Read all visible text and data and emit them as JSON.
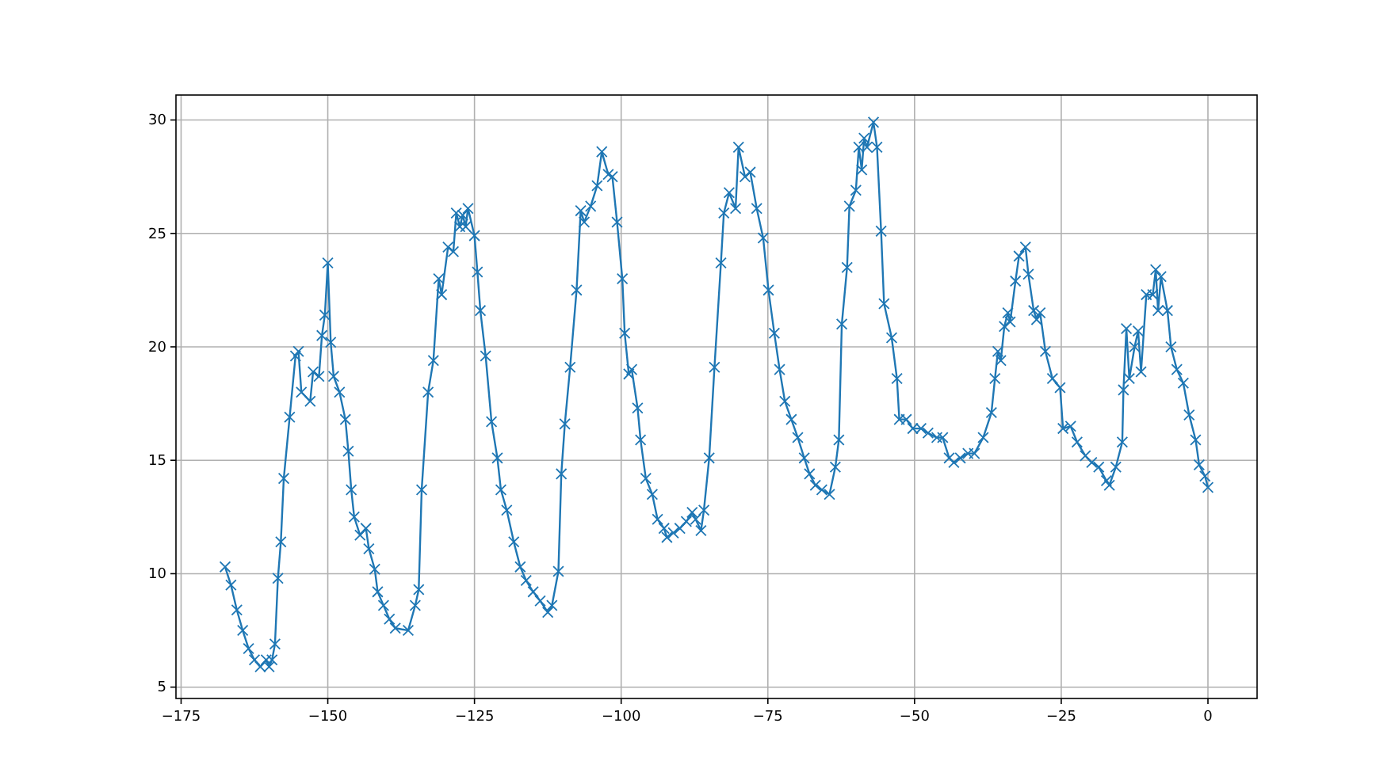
{
  "chart_data": {
    "type": "line",
    "marker": "cross",
    "line_style": "solid",
    "grid": true,
    "xlim": [
      -175.875,
      8.375
    ],
    "ylim": [
      4.5,
      31.1
    ],
    "xticks": [
      {
        "value": -175,
        "label": "−175"
      },
      {
        "value": -150,
        "label": "−150"
      },
      {
        "value": -125,
        "label": "−125"
      },
      {
        "value": -100,
        "label": "−100"
      },
      {
        "value": -75,
        "label": "−75"
      },
      {
        "value": -50,
        "label": "−50"
      },
      {
        "value": -25,
        "label": "−25"
      },
      0
    ],
    "yticks": [
      5,
      10,
      15,
      20,
      25,
      30
    ],
    "series": [
      {
        "color": "#1f77b4",
        "x": [
          -167.5,
          -166.5,
          -165.5,
          -164.5,
          -163.5,
          -162.5,
          -161.5,
          -160.5,
          -160,
          -159.5,
          -159,
          -158.5,
          -158,
          -157.5,
          -156.5,
          -155.5,
          -155,
          -154.5,
          -153,
          -152.5,
          -151.5,
          -151,
          -150.5,
          -150,
          -149.5,
          -149,
          -148,
          -147,
          -146.5,
          -146,
          -145.5,
          -144.5,
          -143.5,
          -143,
          -142,
          -141.5,
          -140.5,
          -139.5,
          -138.5,
          -136.3,
          -135.1,
          -134.5,
          -134.0,
          -132.9,
          -132.0,
          -131.1,
          -130.6,
          -129.5,
          -128.6,
          -128.1,
          -127.5,
          -127.0,
          -126.5,
          -126.1,
          -125.0,
          -124.5,
          -124.0,
          -123.1,
          -122.1,
          -121.1,
          -120.5,
          -119.5,
          -118.3,
          -117.2,
          -116.2,
          -115.0,
          -113.8,
          -112.5,
          -111.8,
          -110.7,
          -110.2,
          -109.6,
          -108.7,
          -107.6,
          -106.9,
          -106.3,
          -105.2,
          -104.1,
          -103.3,
          -102.2,
          -101.5,
          -100.7,
          -99.8,
          -99.4,
          -98.7,
          -98.2,
          -97.2,
          -96.7,
          -95.8,
          -94.7,
          -93.8,
          -92.7,
          -92.2,
          -91.1,
          -90.0,
          -88.9,
          -87.9,
          -87.3,
          -86.4,
          -85.9,
          -85.0,
          -84.1,
          -83.0,
          -82.5,
          -81.6,
          -80.5,
          -80.0,
          -78.9,
          -78.0,
          -76.9,
          -75.8,
          -74.9,
          -73.9,
          -73.0,
          -72.1,
          -71.0,
          -69.9,
          -68.8,
          -67.9,
          -66.9,
          -65.8,
          -64.5,
          -63.5,
          -62.9,
          -62.4,
          -61.5,
          -61.1,
          -60.0,
          -59.5,
          -59.0,
          -58.6,
          -58.1,
          -57.0,
          -56.4,
          -55.7,
          -55.2,
          -53.9,
          -53.0,
          -52.6,
          -51.4,
          -50.3,
          -48.9,
          -47.7,
          -46.2,
          -45.2,
          -44.1,
          -43.3,
          -42.2,
          -40.9,
          -39.8,
          -38.3,
          -36.9,
          -36.3,
          -35.8,
          -35.3,
          -34.7,
          -34.1,
          -33.7,
          -32.8,
          -32.2,
          -31.1,
          -30.6,
          -29.7,
          -29.2,
          -28.6,
          -27.7,
          -26.5,
          -25.2,
          -24.7,
          -23.4,
          -22.3,
          -20.9,
          -19.8,
          -18.6,
          -17.3,
          -16.8,
          -15.7,
          -14.6,
          -14.4,
          -13.9,
          -13.4,
          -12.5,
          -11.9,
          -11.4,
          -10.5,
          -9.4,
          -8.9,
          -8.5,
          -8.0,
          -6.9,
          -6.3,
          -5.3,
          -4.2,
          -3.2,
          -2.1,
          -1.5,
          -0.5,
          0
        ],
        "values": [
          10.3,
          9.5,
          8.4,
          7.5,
          6.7,
          6.2,
          5.9,
          6.2,
          5.9,
          6.2,
          6.9,
          9.8,
          11.4,
          14.2,
          16.9,
          19.6,
          19.8,
          18.0,
          17.6,
          18.9,
          18.7,
          20.5,
          21.4,
          23.7,
          20.2,
          18.7,
          18.0,
          16.8,
          15.4,
          13.7,
          12.5,
          11.7,
          12.0,
          11.1,
          10.2,
          9.2,
          8.6,
          8.0,
          7.6,
          7.5,
          8.6,
          9.3,
          13.7,
          18.0,
          19.4,
          23.0,
          22.3,
          24.4,
          24.2,
          25.9,
          25.3,
          25.8,
          25.3,
          26.1,
          24.9,
          23.3,
          21.6,
          19.6,
          16.7,
          15.1,
          13.7,
          12.8,
          11.4,
          10.3,
          9.7,
          9.2,
          8.8,
          8.3,
          8.6,
          10.1,
          14.4,
          16.6,
          19.1,
          22.5,
          26.0,
          25.5,
          26.2,
          27.1,
          28.6,
          27.6,
          27.5,
          25.5,
          23.0,
          20.6,
          18.8,
          19.0,
          17.3,
          15.9,
          14.2,
          13.5,
          12.4,
          12.0,
          11.6,
          11.8,
          12.0,
          12.3,
          12.7,
          12.4,
          11.9,
          12.8,
          15.1,
          19.1,
          23.7,
          25.9,
          26.8,
          26.1,
          28.8,
          27.5,
          27.7,
          26.1,
          24.8,
          22.5,
          20.6,
          19.0,
          17.6,
          16.8,
          16.0,
          15.1,
          14.4,
          13.9,
          13.7,
          13.5,
          14.7,
          15.9,
          21.0,
          23.5,
          26.2,
          26.9,
          28.8,
          27.8,
          29.2,
          28.8,
          29.9,
          28.8,
          25.1,
          21.9,
          20.4,
          18.6,
          16.8,
          16.8,
          16.4,
          16.4,
          16.2,
          16.0,
          16.0,
          15.1,
          14.9,
          15.1,
          15.3,
          15.3,
          16.0,
          17.1,
          18.6,
          19.8,
          19.4,
          20.9,
          21.5,
          21.1,
          22.9,
          24.0,
          24.4,
          23.2,
          21.6,
          21.2,
          21.5,
          19.8,
          18.6,
          18.2,
          16.4,
          16.5,
          15.8,
          15.2,
          14.9,
          14.7,
          14.1,
          13.9,
          14.7,
          15.8,
          18.1,
          20.8,
          18.6,
          20.0,
          20.7,
          18.9,
          22.3,
          22.3,
          23.4,
          21.6,
          23.1,
          21.6,
          20.0,
          19.0,
          18.4,
          17.0,
          15.9,
          14.8,
          14.3,
          13.8
        ]
      }
    ]
  }
}
